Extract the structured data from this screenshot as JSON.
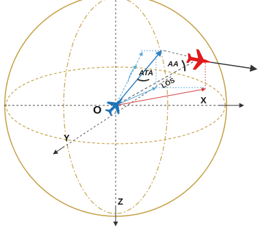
{
  "labels": {
    "origin": "O",
    "x_axis": "X",
    "y_axis": "Y",
    "z_axis": "Z",
    "aa": "AA",
    "ata": "ATA",
    "los": "LOS"
  },
  "colors": {
    "sphere": "#c6a24a",
    "axis": "#444444",
    "ownship": "#1f73b7",
    "target": "#e11a1a",
    "los_line": "#d23a3a",
    "velocity": "#2f7fc1",
    "velocity_dashed": "#58a9dc",
    "target_heading": "#333333"
  },
  "icons": {
    "ownship": "blue-fighter-jet-icon",
    "target": "red-fighter-jet-icon"
  }
}
